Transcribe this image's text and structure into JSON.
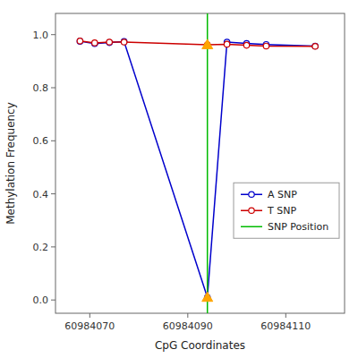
{
  "chart_data": {
    "type": "line",
    "x_label": "CpG Coordinates",
    "y_label": "Methylation Frequency",
    "x": [
      60984068,
      60984071,
      60984074,
      60984077,
      60984094,
      60984098,
      60984102,
      60984106,
      60984116
    ],
    "xlim": [
      60984063,
      60984122
    ],
    "ylim": [
      -0.05,
      1.08
    ],
    "xticks": [
      60984070,
      60984090,
      60984110
    ],
    "yticks": [
      {
        "value": 0.0,
        "label": "0.0"
      },
      0.2,
      0.4,
      0.6,
      0.8,
      {
        "value": 1.0,
        "label": "1.0"
      }
    ],
    "series": [
      {
        "name": "A SNP",
        "color": "#0000CC",
        "marker": "circle",
        "values": [
          0.975,
          0.966,
          0.97,
          0.974,
          0.01,
          0.972,
          0.967,
          0.963,
          0.957
        ]
      },
      {
        "name": "T SNP",
        "color": "#CC0000",
        "marker": "circle",
        "values": [
          0.976,
          0.969,
          0.972,
          0.972,
          0.962,
          0.964,
          0.96,
          0.957,
          0.956
        ]
      },
      {
        "name": "SNP Position",
        "type": "vline",
        "color": "#00BB00",
        "x": 60984094
      }
    ],
    "snp_markers": {
      "type": "scatter",
      "marker": "triangle",
      "color": "#FFA500",
      "x": [
        60984094,
        60984094
      ],
      "values": [
        0.962,
        0.01
      ]
    },
    "grid": false,
    "legend": "lower right"
  }
}
